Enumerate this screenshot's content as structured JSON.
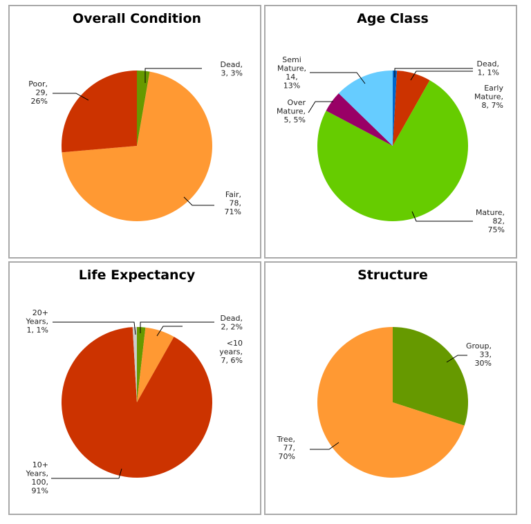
{
  "chart_data": [
    {
      "type": "pie",
      "title": "Overall Condition",
      "start_angle": 0,
      "slices": [
        {
          "label": "Dead",
          "count": 3,
          "percent": "3%",
          "color": "#669900"
        },
        {
          "label": "Fair",
          "count": 78,
          "percent": "71%",
          "color": "#ff9933"
        },
        {
          "label": "Poor",
          "count": 29,
          "percent": "26%",
          "color": "#cc3300"
        }
      ]
    },
    {
      "type": "pie",
      "title": "Age Class",
      "start_angle": 0,
      "slices": [
        {
          "label": "Dead",
          "count": 1,
          "percent": "1%",
          "color": "#0066cc"
        },
        {
          "label": "Early Mature",
          "count": 8,
          "percent": "7%",
          "color": "#cc3300"
        },
        {
          "label": "Mature",
          "count": 82,
          "percent": "75%",
          "color": "#66cc00"
        },
        {
          "label": "Over Mature",
          "count": 5,
          "percent": "5%",
          "color": "#990066"
        },
        {
          "label": "Semi Mature",
          "count": 14,
          "percent": "13%",
          "color": "#66ccff"
        }
      ]
    },
    {
      "type": "pie",
      "title": "Life Expectancy",
      "start_angle": 0,
      "slices": [
        {
          "label": "Dead",
          "count": 2,
          "percent": "2%",
          "color": "#669900"
        },
        {
          "label": "<10 years",
          "count": 7,
          "percent": "6%",
          "color": "#ff9933"
        },
        {
          "label": "10+ Years",
          "count": 100,
          "percent": "91%",
          "color": "#cc3300"
        },
        {
          "label": "20+ Years",
          "count": 1,
          "percent": "1%",
          "color": "#cccccc"
        }
      ]
    },
    {
      "type": "pie",
      "title": "Structure",
      "start_angle": 0,
      "slices": [
        {
          "label": "Group",
          "count": 33,
          "percent": "30%",
          "color": "#669900"
        },
        {
          "label": "Tree",
          "count": 77,
          "percent": "70%",
          "color": "#ff9933"
        }
      ]
    }
  ]
}
